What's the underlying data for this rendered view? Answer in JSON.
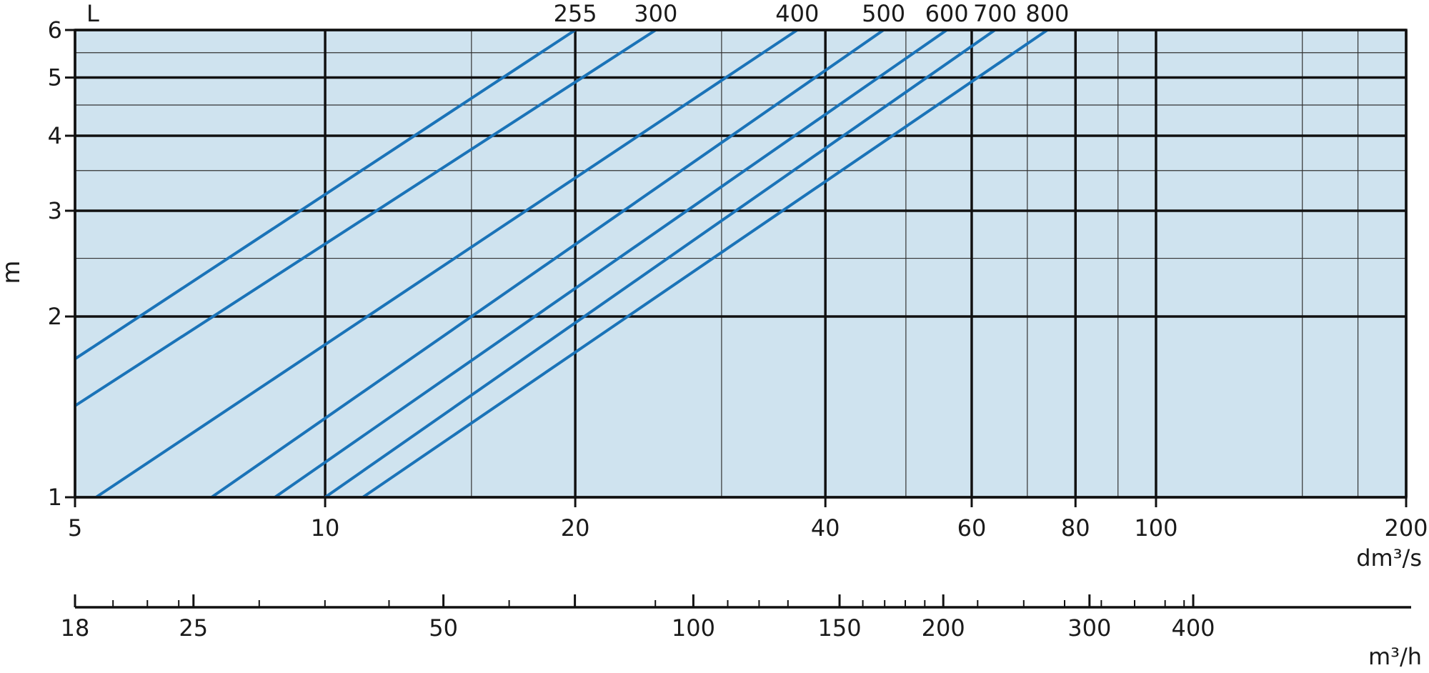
{
  "chart_data": {
    "type": "line",
    "title": "",
    "xlabel": "dm³/s",
    "ylabel": "m",
    "xscale": "log",
    "yscale": "log",
    "xlim": [
      5,
      200
    ],
    "ylim": [
      1,
      6
    ],
    "background_color": "#cfe3ef",
    "line_color": "#1a73b8",
    "grid": true,
    "legend_header": "L",
    "x_ticks": [
      5,
      10,
      20,
      40,
      60,
      80,
      100,
      200
    ],
    "x_tick_labels": [
      "5",
      "10",
      "20",
      "40",
      "60",
      "80",
      "100",
      "200"
    ],
    "x_minor_gridlines": [
      15,
      30,
      50,
      70,
      90,
      150,
      175
    ],
    "y_ticks": [
      1,
      2,
      3,
      4,
      5,
      6
    ],
    "y_tick_labels": [
      "1",
      "2",
      "3",
      "4",
      "5",
      "6"
    ],
    "y_minor_gridlines": [
      2.5,
      3.5,
      4.5,
      5.5
    ],
    "secondary_axis": {
      "label": "m³/h",
      "major_ticks": [
        18,
        25,
        50,
        72,
        100,
        150,
        200,
        300,
        400
      ],
      "labels": [
        {
          "value": 18,
          "text": "18"
        },
        {
          "value": 25,
          "text": "25"
        },
        {
          "value": 50,
          "text": "50"
        },
        {
          "value": 100,
          "text": "100"
        },
        {
          "value": 150,
          "text": "150"
        },
        {
          "value": 200,
          "text": "200"
        },
        {
          "value": 300,
          "text": "300"
        },
        {
          "value": 400,
          "text": "400"
        }
      ],
      "minor_ticks": [
        20,
        22,
        24,
        30,
        36,
        43,
        60,
        90,
        110,
        120,
        130,
        160,
        170,
        180,
        190,
        220,
        250,
        280,
        310,
        340,
        370,
        390
      ]
    },
    "series": [
      {
        "name": "255",
        "x": [
          5.0,
          20.0
        ],
        "y": [
          1.7,
          6.0
        ]
      },
      {
        "name": "300",
        "x": [
          5.0,
          25.0
        ],
        "y": [
          1.42,
          6.0
        ]
      },
      {
        "name": "400",
        "x": [
          5.3,
          37.0
        ],
        "y": [
          1.0,
          6.0
        ]
      },
      {
        "name": "500",
        "x": [
          7.3,
          47.0
        ],
        "y": [
          1.0,
          6.0
        ]
      },
      {
        "name": "600",
        "x": [
          8.7,
          56.0
        ],
        "y": [
          1.0,
          6.0
        ]
      },
      {
        "name": "700",
        "x": [
          10.0,
          64.0
        ],
        "y": [
          1.0,
          6.0
        ]
      },
      {
        "name": "800",
        "x": [
          11.1,
          74.0
        ],
        "y": [
          1.0,
          6.0
        ]
      }
    ]
  }
}
